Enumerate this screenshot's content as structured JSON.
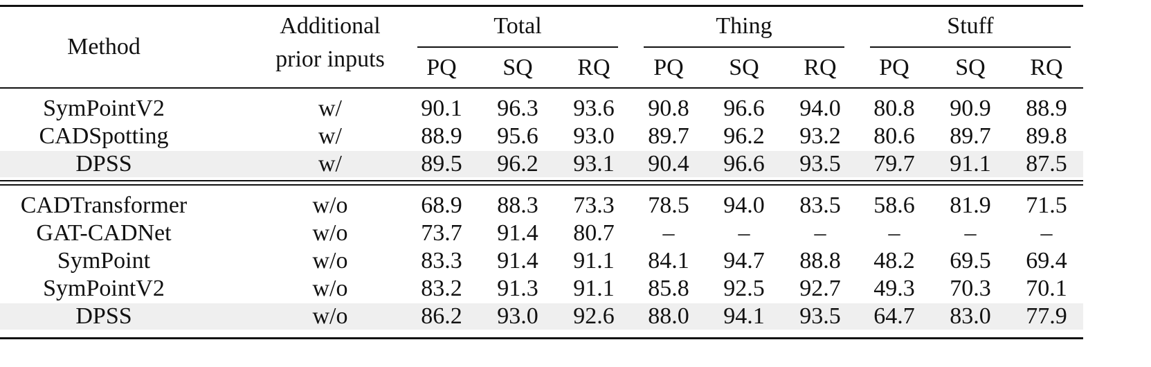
{
  "header": {
    "method": "Method",
    "prior": "Additional prior inputs",
    "groups": [
      {
        "name": "Total",
        "metrics": [
          "PQ",
          "SQ",
          "RQ"
        ]
      },
      {
        "name": "Thing",
        "metrics": [
          "PQ",
          "SQ",
          "RQ"
        ]
      },
      {
        "name": "Stuff",
        "metrics": [
          "PQ",
          "SQ",
          "RQ"
        ]
      }
    ]
  },
  "sections": [
    [
      {
        "method": "SymPointV2",
        "prior": "w/",
        "values": [
          "90.1",
          "96.3",
          "93.6",
          "90.8",
          "96.6",
          "94.0",
          "80.8",
          "90.9",
          "88.9"
        ],
        "highlight": false
      },
      {
        "method": "CADSpotting",
        "prior": "w/",
        "values": [
          "88.9",
          "95.6",
          "93.0",
          "89.7",
          "96.2",
          "93.2",
          "80.6",
          "89.7",
          "89.8"
        ],
        "highlight": false
      },
      {
        "method": "DPSS",
        "prior": "w/",
        "values": [
          "89.5",
          "96.2",
          "93.1",
          "90.4",
          "96.6",
          "93.5",
          "79.7",
          "91.1",
          "87.5"
        ],
        "highlight": true
      }
    ],
    [
      {
        "method": "CADTransformer",
        "prior": "w/o",
        "values": [
          "68.9",
          "88.3",
          "73.3",
          "78.5",
          "94.0",
          "83.5",
          "58.6",
          "81.9",
          "71.5"
        ],
        "highlight": false
      },
      {
        "method": "GAT-CADNet",
        "prior": "w/o",
        "values": [
          "73.7",
          "91.4",
          "80.7",
          "–",
          "–",
          "–",
          "–",
          "–",
          "–"
        ],
        "highlight": false
      },
      {
        "method": "SymPoint",
        "prior": "w/o",
        "values": [
          "83.3",
          "91.4",
          "91.1",
          "84.1",
          "94.7",
          "88.8",
          "48.2",
          "69.5",
          "69.4"
        ],
        "highlight": false
      },
      {
        "method": "SymPointV2",
        "prior": "w/o",
        "values": [
          "83.2",
          "91.3",
          "91.1",
          "85.8",
          "92.5",
          "92.7",
          "49.3",
          "70.3",
          "70.1"
        ],
        "highlight": false
      },
      {
        "method": "DPSS",
        "prior": "w/o",
        "values": [
          "86.2",
          "93.0",
          "92.6",
          "88.0",
          "94.1",
          "93.5",
          "64.7",
          "83.0",
          "77.9"
        ],
        "highlight": true
      }
    ]
  ]
}
